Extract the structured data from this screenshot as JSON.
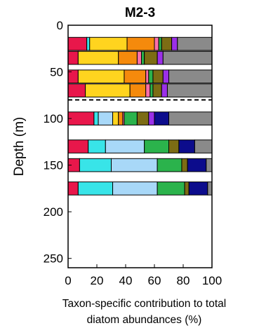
{
  "chart_data": {
    "type": "bar",
    "orientation": "horizontal-stacked",
    "title": "M2-3",
    "ylabel": "Depth (m)",
    "xlabel_lines": [
      "Taxon-specific contribution to total",
      "diatom abundances (%)"
    ],
    "xlim": [
      0,
      100
    ],
    "ylim": [
      0,
      260
    ],
    "y_inverted": true,
    "xticks": [
      0,
      20,
      40,
      60,
      80,
      100
    ],
    "yticks": [
      0,
      50,
      100,
      150,
      200,
      250
    ],
    "grid": false,
    "legend": "none",
    "reference_line": {
      "depth": 80,
      "style": "dashed"
    },
    "bar_thickness_m": 14,
    "segment_colors": [
      "#e8174b",
      "#38e4e8",
      "#a8d8f8",
      "#ffd41f",
      "#f58a0c",
      "#ff6fa8",
      "#2bb34c",
      "#7c6c14",
      "#9b30e8",
      "#0c0c8c",
      "#8a8a8a"
    ],
    "bars": [
      {
        "depth": 20,
        "segments": [
          13,
          2,
          0,
          26,
          19,
          3,
          2,
          7,
          4,
          0,
          24
        ]
      },
      {
        "depth": 35,
        "segments": [
          7,
          0,
          0,
          28,
          13,
          3,
          2,
          9,
          4,
          0,
          34
        ]
      },
      {
        "depth": 55,
        "segments": [
          7,
          0,
          0,
          32,
          15,
          2,
          3,
          7,
          4,
          0,
          30
        ]
      },
      {
        "depth": 70,
        "segments": [
          12,
          0,
          0,
          31,
          11,
          3,
          2,
          6,
          4,
          0,
          31
        ]
      },
      {
        "depth": 100,
        "segments": [
          18,
          3,
          10,
          4,
          3,
          1,
          9,
          8,
          4,
          10,
          30
        ]
      },
      {
        "depth": 130,
        "segments": [
          14,
          12,
          27,
          0,
          0,
          0,
          17,
          7,
          0,
          11,
          12
        ]
      },
      {
        "depth": 150,
        "segments": [
          8,
          22,
          32,
          0,
          0,
          0,
          17,
          4,
          0,
          13,
          4
        ]
      },
      {
        "depth": 175,
        "segments": [
          7,
          24,
          31,
          0,
          0,
          0,
          19,
          3,
          0,
          13,
          3
        ]
      }
    ]
  }
}
